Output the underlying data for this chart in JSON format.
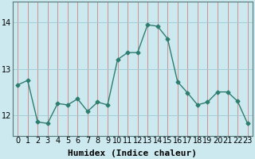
{
  "x": [
    0,
    1,
    2,
    3,
    4,
    5,
    6,
    7,
    8,
    9,
    10,
    11,
    12,
    13,
    14,
    15,
    16,
    17,
    18,
    19,
    20,
    21,
    22,
    23
  ],
  "y": [
    12.65,
    12.75,
    11.85,
    11.82,
    12.25,
    12.22,
    12.35,
    12.08,
    12.28,
    12.22,
    13.2,
    13.35,
    13.35,
    13.95,
    13.92,
    13.65,
    12.72,
    12.48,
    12.22,
    12.28,
    12.5,
    12.5,
    12.3,
    11.82
  ],
  "line_color": "#2e7d6e",
  "marker": "D",
  "marker_size": 2.5,
  "bg_color": "#cce9f0",
  "vgrid_color": "#d08080",
  "hgrid_color": "#a0c8d0",
  "xlabel": "Humidex (Indice chaleur)",
  "yticks": [
    12,
    13,
    14
  ],
  "xlim": [
    -0.5,
    23.5
  ],
  "ylim": [
    11.55,
    14.45
  ],
  "xlabel_fontsize": 8,
  "tick_fontsize": 7,
  "line_width": 1.0
}
